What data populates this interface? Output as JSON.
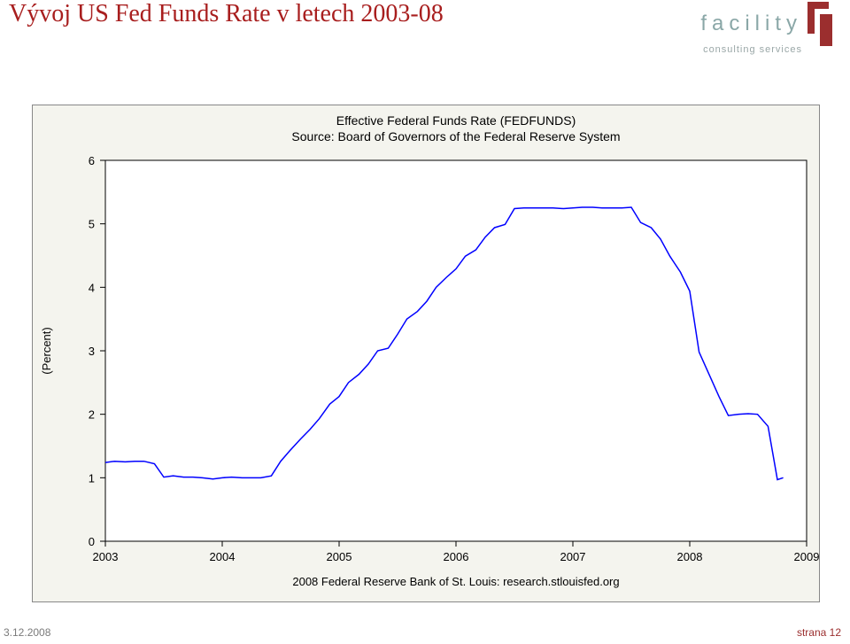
{
  "header": {
    "title": "Vývoj US Fed Funds Rate v letech 2003-08"
  },
  "logo": {
    "word": "facility",
    "sub": "consulting services",
    "text_color": "#8aa7a7",
    "mark_color": "#9b2e2e"
  },
  "footer": {
    "date": "3.12.2008",
    "page": "strana 12"
  },
  "chart": {
    "type": "line",
    "title_line1": "Effective Federal Funds Rate (FEDFUNDS)",
    "title_line2": "Source: Board of Governors of the Federal Reserve System",
    "ylabel": "(Percent)",
    "footer": "2008 Federal Reserve Bank of St. Louis: research.stlouisfed.org",
    "title_fontsize": 14,
    "title_color": "#000000",
    "label_fontsize": 13,
    "axis_color": "#000000",
    "line_color": "#0000ff",
    "line_width": 1.5,
    "background_color": "#f4f4ee",
    "plot_background": "#ffffff",
    "plot_border_color": "#000000",
    "xlim": [
      2003,
      2009
    ],
    "ylim": [
      0,
      6
    ],
    "xtick_step": 1,
    "ytick_step": 1,
    "xticks": [
      2003,
      2004,
      2005,
      2006,
      2007,
      2008,
      2009
    ],
    "yticks": [
      0,
      1,
      2,
      3,
      4,
      5,
      6
    ],
    "series": [
      {
        "x": 2003.0,
        "y": 1.24
      },
      {
        "x": 2003.08,
        "y": 1.26
      },
      {
        "x": 2003.17,
        "y": 1.25
      },
      {
        "x": 2003.25,
        "y": 1.26
      },
      {
        "x": 2003.33,
        "y": 1.26
      },
      {
        "x": 2003.42,
        "y": 1.22
      },
      {
        "x": 2003.5,
        "y": 1.01
      },
      {
        "x": 2003.58,
        "y": 1.03
      },
      {
        "x": 2003.67,
        "y": 1.01
      },
      {
        "x": 2003.75,
        "y": 1.01
      },
      {
        "x": 2003.83,
        "y": 1.0
      },
      {
        "x": 2003.92,
        "y": 0.98
      },
      {
        "x": 2004.0,
        "y": 1.0
      },
      {
        "x": 2004.08,
        "y": 1.01
      },
      {
        "x": 2004.17,
        "y": 1.0
      },
      {
        "x": 2004.25,
        "y": 1.0
      },
      {
        "x": 2004.33,
        "y": 1.0
      },
      {
        "x": 2004.42,
        "y": 1.03
      },
      {
        "x": 2004.5,
        "y": 1.26
      },
      {
        "x": 2004.58,
        "y": 1.43
      },
      {
        "x": 2004.67,
        "y": 1.61
      },
      {
        "x": 2004.75,
        "y": 1.76
      },
      {
        "x": 2004.83,
        "y": 1.93
      },
      {
        "x": 2004.92,
        "y": 2.16
      },
      {
        "x": 2005.0,
        "y": 2.28
      },
      {
        "x": 2005.08,
        "y": 2.5
      },
      {
        "x": 2005.17,
        "y": 2.63
      },
      {
        "x": 2005.25,
        "y": 2.79
      },
      {
        "x": 2005.33,
        "y": 3.0
      },
      {
        "x": 2005.42,
        "y": 3.04
      },
      {
        "x": 2005.5,
        "y": 3.26
      },
      {
        "x": 2005.58,
        "y": 3.5
      },
      {
        "x": 2005.67,
        "y": 3.62
      },
      {
        "x": 2005.75,
        "y": 3.78
      },
      {
        "x": 2005.83,
        "y": 4.0
      },
      {
        "x": 2005.92,
        "y": 4.16
      },
      {
        "x": 2006.0,
        "y": 4.29
      },
      {
        "x": 2006.08,
        "y": 4.49
      },
      {
        "x": 2006.17,
        "y": 4.59
      },
      {
        "x": 2006.25,
        "y": 4.79
      },
      {
        "x": 2006.33,
        "y": 4.94
      },
      {
        "x": 2006.42,
        "y": 4.99
      },
      {
        "x": 2006.5,
        "y": 5.24
      },
      {
        "x": 2006.58,
        "y": 5.25
      },
      {
        "x": 2006.67,
        "y": 5.25
      },
      {
        "x": 2006.75,
        "y": 5.25
      },
      {
        "x": 2006.83,
        "y": 5.25
      },
      {
        "x": 2006.92,
        "y": 5.24
      },
      {
        "x": 2007.0,
        "y": 5.25
      },
      {
        "x": 2007.08,
        "y": 5.26
      },
      {
        "x": 2007.17,
        "y": 5.26
      },
      {
        "x": 2007.25,
        "y": 5.25
      },
      {
        "x": 2007.33,
        "y": 5.25
      },
      {
        "x": 2007.42,
        "y": 5.25
      },
      {
        "x": 2007.5,
        "y": 5.26
      },
      {
        "x": 2007.58,
        "y": 5.02
      },
      {
        "x": 2007.67,
        "y": 4.94
      },
      {
        "x": 2007.75,
        "y": 4.76
      },
      {
        "x": 2007.83,
        "y": 4.49
      },
      {
        "x": 2007.92,
        "y": 4.24
      },
      {
        "x": 2008.0,
        "y": 3.94
      },
      {
        "x": 2008.08,
        "y": 2.98
      },
      {
        "x": 2008.17,
        "y": 2.61
      },
      {
        "x": 2008.25,
        "y": 2.28
      },
      {
        "x": 2008.33,
        "y": 1.98
      },
      {
        "x": 2008.42,
        "y": 2.0
      },
      {
        "x": 2008.5,
        "y": 2.01
      },
      {
        "x": 2008.58,
        "y": 2.0
      },
      {
        "x": 2008.67,
        "y": 1.81
      },
      {
        "x": 2008.75,
        "y": 0.97
      },
      {
        "x": 2008.8,
        "y": 1.0
      }
    ]
  }
}
